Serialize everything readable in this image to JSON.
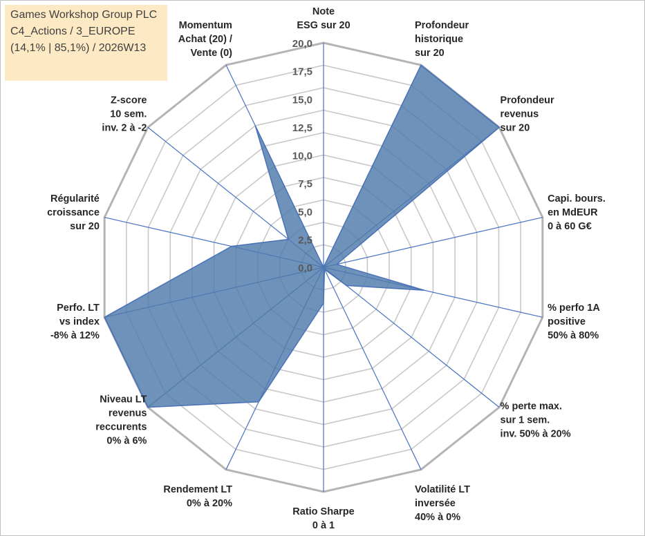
{
  "chart_data": {
    "type": "radar",
    "title_lines": [
      "Games Workshop Group PLC",
      "C4_Actions / 3_EUROPE",
      "(14,1% | 85,1%) / 2026W13"
    ],
    "rmin": 0,
    "rmax": 20,
    "tick_labels": [
      "0,0",
      "2,5",
      "5,0",
      "7,5",
      "10,0",
      "12,5",
      "15,0",
      "17,5",
      "20,0"
    ],
    "grid_rings": 10,
    "colors": {
      "fill": "#4f7aab",
      "outline": "#4a72b8",
      "spoke": "#4472c4",
      "grid": "#c8c8c8",
      "outer_ring": "#b4b4b4"
    },
    "axes": [
      {
        "label_lines": [
          "Note",
          "ESG sur 20"
        ],
        "value": 0
      },
      {
        "label_lines": [
          "Profondeur",
          "historique",
          "sur 20"
        ],
        "value": 20
      },
      {
        "label_lines": [
          "Profondeur",
          "revenus",
          "sur 20"
        ],
        "value": 20
      },
      {
        "label_lines": [
          "Capi. bours.",
          "en MdEUR",
          "0 à 60 G€"
        ],
        "value": 1.2
      },
      {
        "label_lines": [
          "% perfo 1A",
          "positive",
          "50% à 80%"
        ],
        "value": 9.2
      },
      {
        "label_lines": [
          "% perte max.",
          "sur 1 sem.",
          "inv. 50% à 20%"
        ],
        "value": 2.6
      },
      {
        "label_lines": [
          "Volatilité LT",
          "inversée",
          "40% à 0%"
        ],
        "value": 0.2
      },
      {
        "label_lines": [
          "Ratio Sharpe",
          "0 à 1"
        ],
        "value": 3.2
      },
      {
        "label_lines": [
          "Rendement LT",
          "0% à 20%"
        ],
        "value": 13.3
      },
      {
        "label_lines": [
          "Niveau LT",
          "revenus",
          "reccurents",
          "0% à 6%"
        ],
        "value": 20
      },
      {
        "label_lines": [
          "Perfo. LT",
          "vs index",
          "-8% à 12%"
        ],
        "value": 20
      },
      {
        "label_lines": [
          "Régularité",
          "croissance",
          "sur 20"
        ],
        "value": 8.4
      },
      {
        "label_lines": [
          "Z-score",
          "10 sem.",
          "inv. 2 à -2"
        ],
        "value": 4.0
      },
      {
        "label_lines": [
          "Momentum",
          "Achat (20) /",
          "Vente (0)"
        ],
        "value": 14.0
      }
    ]
  }
}
